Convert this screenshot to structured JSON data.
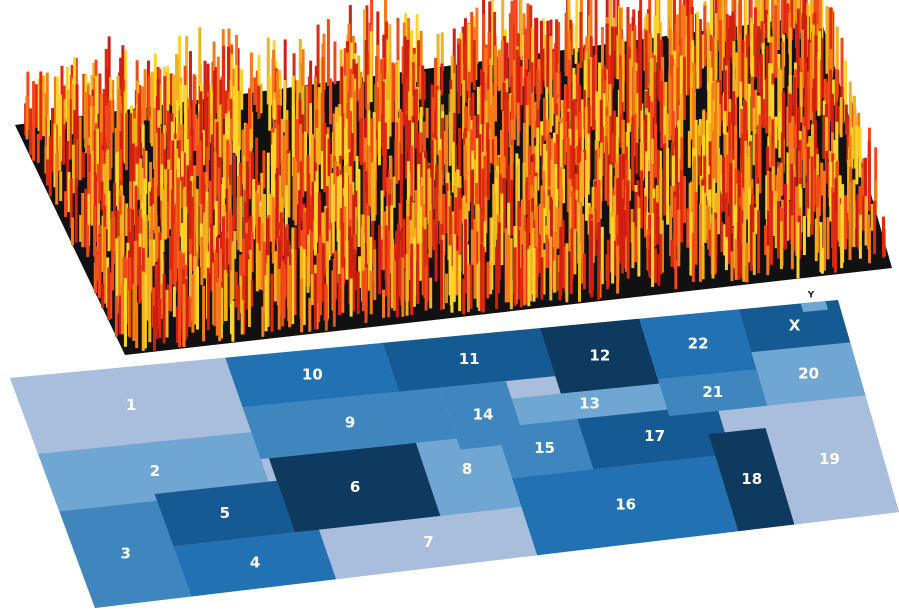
{
  "regions": [
    "1",
    "2",
    "3",
    "4",
    "5",
    "6",
    "7",
    "8",
    "9",
    "10",
    "11",
    "12",
    "13",
    "14",
    "15",
    "16",
    "17",
    "18",
    "19",
    "20",
    "21",
    "22",
    "X",
    "Y"
  ]
}
